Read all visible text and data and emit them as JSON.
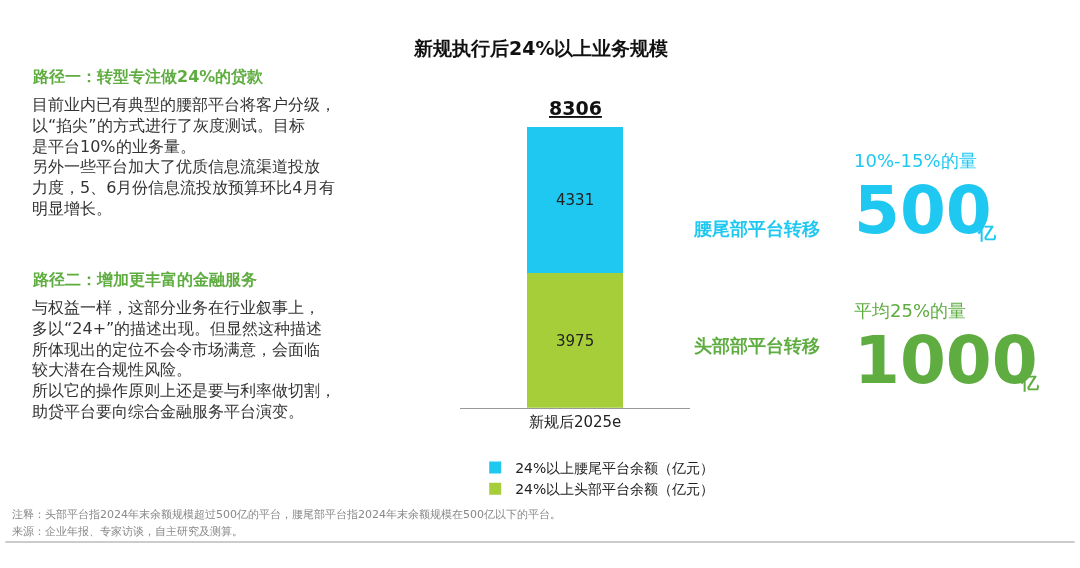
{
  "chart_data": {
    "type": "bar",
    "stacked": true,
    "title": "新规执行后24%以上业务规模",
    "categories": [
      "新规后2025e"
    ],
    "series": [
      {
        "name": "24%以上头部平台余额（亿元）",
        "color": "#a6ce39",
        "values": [
          3975
        ]
      },
      {
        "name": "24%以上腰尾平台余额（亿元）",
        "color": "#1ec8f0",
        "values": [
          4331
        ]
      }
    ],
    "data_labels": true,
    "totals": [
      "8306"
    ],
    "legend": "bottom",
    "annotations": [
      "路径一：转型专注做24%的贷款",
      "目前业内已有典型的腰部平台将客户分级，以“掐尖”的方式进行了灰度测试。目标是平台10%的业务量。",
      "另外一些平台加大了优质信息流渠道投放力度，5、6月份信息流投放预算环比4月有明显增长。",
      "路径二：增加更丰富的金融服务",
      "与权益一样，这部分业务在行业叙事上，多以“24+”的描述出现。但显然这种描述所体现出的定位不会令市场满意，会面临较大潜在合规性风险。",
      "所以它的操作原则上还是要与利率做切割，助贷平台要向综合金融服务平台演变。",
      "腰尾部平台转移",
      "头部部平台转移",
      "10%-15%的量",
      "500",
      "亿",
      "平均25%的量",
      "1000",
      "亿",
      "注释：头部平台指2024年末余额规模超过500亿的平台，腰尾部平台指2024年末余额规模在500亿以下的平台。",
      "来源：企业年报、专家访谈，自主研究及测算。"
    ]
  }
}
